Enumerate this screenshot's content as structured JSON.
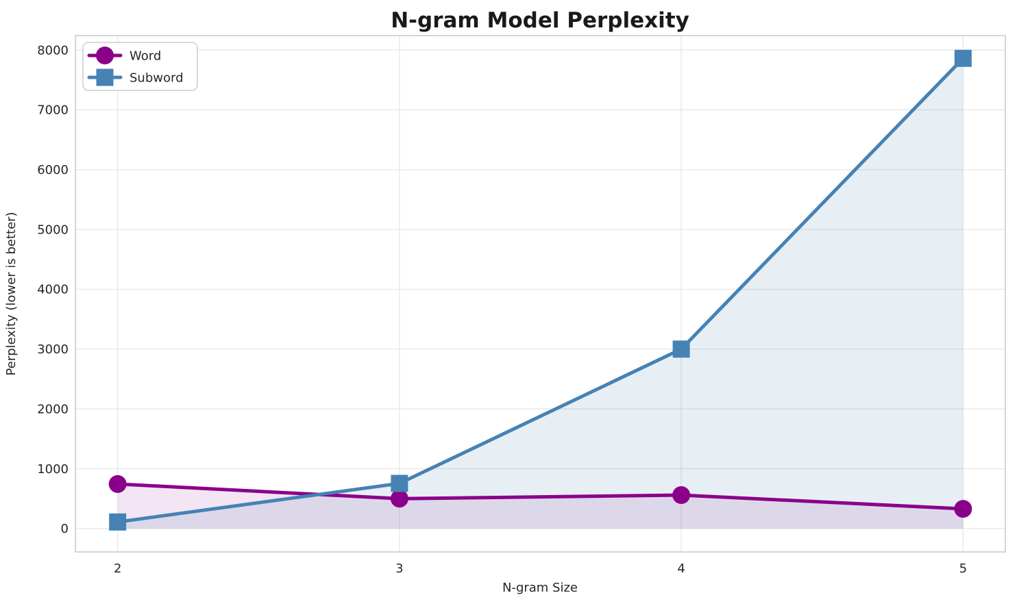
{
  "chart_data": {
    "type": "line",
    "title": "N-gram Model Perplexity",
    "xlabel": "N-gram Size",
    "ylabel": "Perplexity (lower is better)",
    "x": [
      2,
      3,
      4,
      5
    ],
    "xtick_labels": [
      "2",
      "3",
      "4",
      "5"
    ],
    "ytick_values": [
      0,
      1000,
      2000,
      3000,
      4000,
      5000,
      6000,
      7000,
      8000
    ],
    "ytick_labels": [
      "0",
      "1000",
      "2000",
      "3000",
      "4000",
      "5000",
      "6000",
      "7000",
      "8000"
    ],
    "xlim": [
      1.85,
      5.15
    ],
    "ylim": [
      -390,
      8240
    ],
    "grid": true,
    "grid_color": "#e9e9e9",
    "spine_color": "#c9c9c9",
    "legend_position": "upper left",
    "fill_to_zero": true,
    "series": [
      {
        "name": "Word",
        "color": "#8B008B",
        "marker": "circle",
        "fill_color": "rgba(139,0,139,0.10)",
        "values": [
          745,
          500,
          560,
          330
        ]
      },
      {
        "name": "Subword",
        "color": "#4682B4",
        "marker": "square",
        "fill_color": "rgba(70,130,180,0.13)",
        "values": [
          110,
          755,
          3000,
          7860
        ]
      }
    ]
  }
}
